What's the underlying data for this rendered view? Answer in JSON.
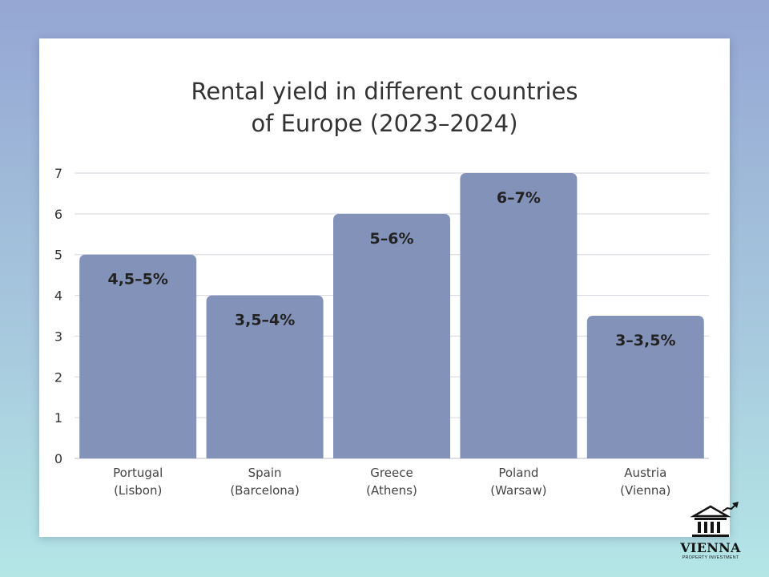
{
  "chart_data": {
    "type": "bar",
    "title_lines": [
      "Rental yield in different countries",
      "of Europe (2023–2024)"
    ],
    "xlabel": "",
    "ylabel": "",
    "ylim": [
      0,
      7
    ],
    "yticks": [
      0,
      1,
      2,
      3,
      4,
      5,
      6,
      7
    ],
    "grid": true,
    "categories": [
      [
        "Portugal",
        "(Lisbon)"
      ],
      [
        "Spain",
        "(Barcelona)"
      ],
      [
        "Greece",
        "(Athens)"
      ],
      [
        "Poland",
        "(Warsaw)"
      ],
      [
        "Austria",
        "(Vienna)"
      ]
    ],
    "values": [
      5,
      4,
      6,
      7,
      3.5
    ],
    "data_labels": [
      "4,5–5%",
      "3,5–4%",
      "5–6%",
      "6–7%",
      "3–3,5%"
    ],
    "bar_color": "#8292b8",
    "grid_color": "#d4d7e0",
    "text_color": "#333333"
  },
  "logo": {
    "name": "VIENNA",
    "tagline": "PROPERTY INVESTMENT"
  }
}
